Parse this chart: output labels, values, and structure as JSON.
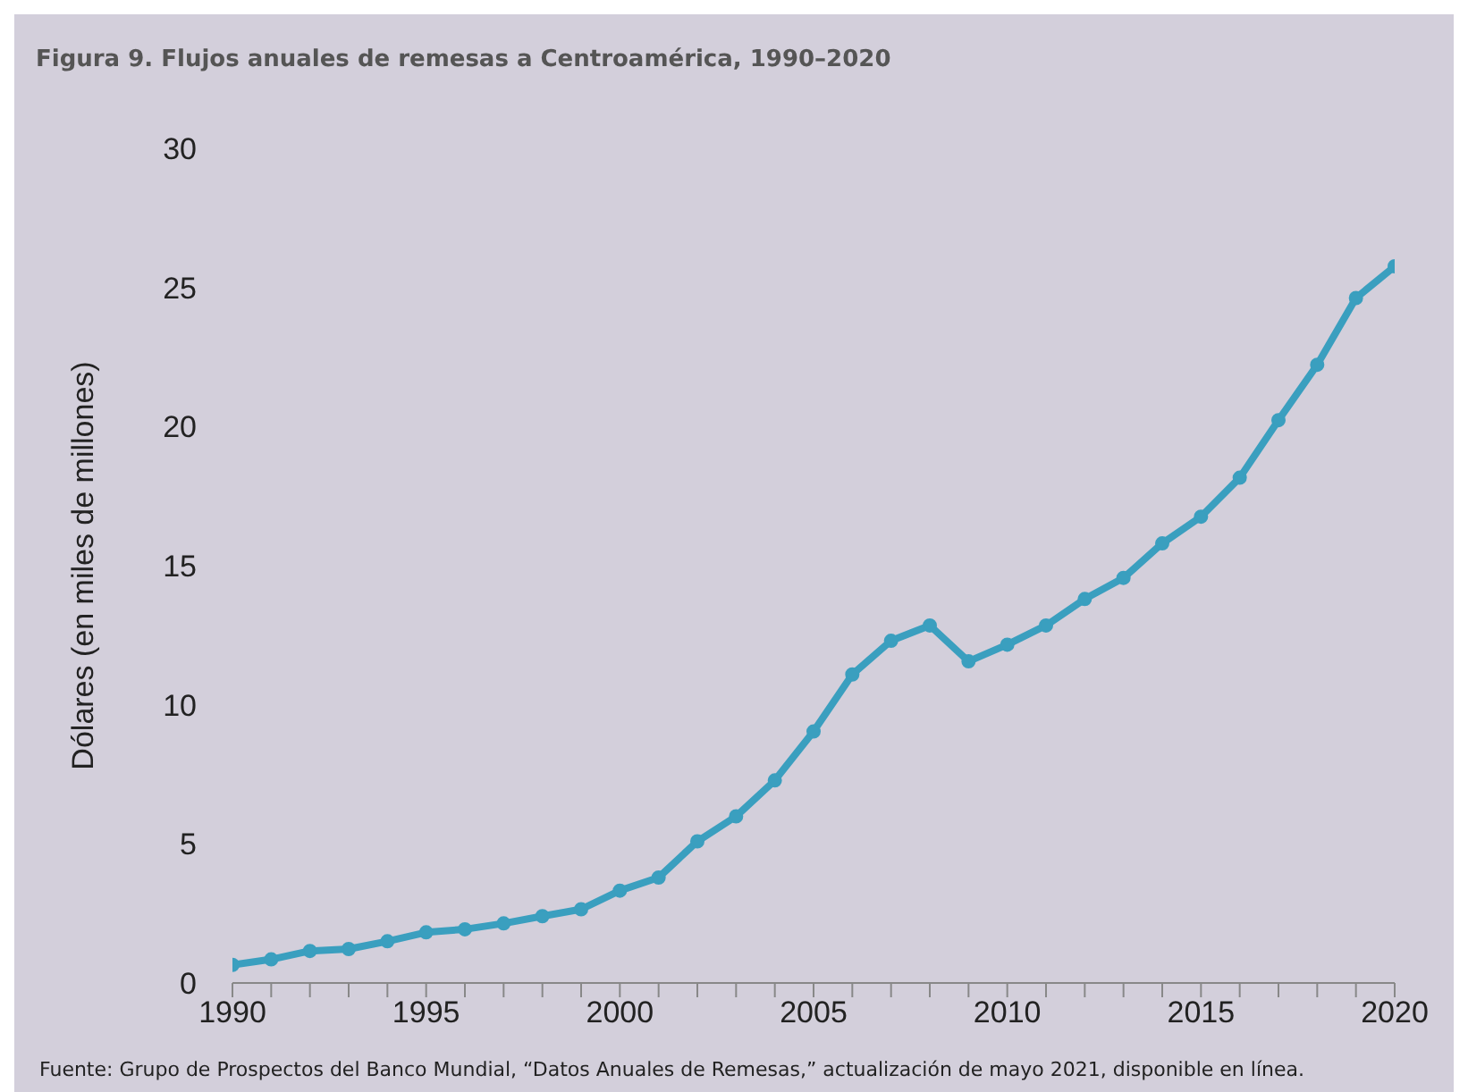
{
  "chart_data": {
    "type": "line",
    "title": "Figura 9. Flujos anuales de remesas a Centroamérica, 1990–2020",
    "ylabel": "Dólares (en miles de millones)",
    "x": [
      1990,
      1991,
      1992,
      1993,
      1994,
      1995,
      1996,
      1997,
      1998,
      1999,
      2000,
      2001,
      2002,
      2003,
      2004,
      2005,
      2006,
      2007,
      2008,
      2009,
      2010,
      2011,
      2012,
      2013,
      2014,
      2015,
      2016,
      2017,
      2018,
      2019,
      2020
    ],
    "series": [
      {
        "color": "#3a9fbf",
        "values": [
          0.65,
          0.85,
          1.15,
          1.22,
          1.5,
          1.82,
          1.93,
          2.14,
          2.4,
          2.65,
          3.32,
          3.79,
          5.09,
          5.99,
          7.28,
          9.04,
          11.09,
          12.3,
          12.85,
          11.56,
          12.16,
          12.85,
          13.8,
          14.56,
          15.8,
          16.76,
          18.16,
          20.23,
          22.22,
          24.62,
          25.76
        ]
      }
    ],
    "xlim": [
      1990,
      2020
    ],
    "xticks": [
      1990,
      {
        "value": 1991,
        "label": null
      },
      {
        "value": 1992,
        "label": null
      },
      {
        "value": 1993,
        "label": null
      },
      {
        "value": 1994,
        "label": null
      },
      1995,
      {
        "value": 1996,
        "label": null
      },
      {
        "value": 1997,
        "label": null
      },
      {
        "value": 1998,
        "label": null
      },
      {
        "value": 1999,
        "label": null
      },
      2000,
      {
        "value": 2001,
        "label": null
      },
      {
        "value": 2002,
        "label": null
      },
      {
        "value": 2003,
        "label": null
      },
      {
        "value": 2004,
        "label": null
      },
      2005,
      {
        "value": 2006,
        "label": null
      },
      {
        "value": 2007,
        "label": null
      },
      {
        "value": 2008,
        "label": null
      },
      {
        "value": 2009,
        "label": null
      },
      2010,
      {
        "value": 2011,
        "label": null
      },
      {
        "value": 2012,
        "label": null
      },
      {
        "value": 2013,
        "label": null
      },
      {
        "value": 2014,
        "label": null
      },
      2015,
      {
        "value": 2016,
        "label": null
      },
      {
        "value": 2017,
        "label": null
      },
      {
        "value": 2018,
        "label": null
      },
      {
        "value": 2019,
        "label": null
      },
      2020
    ],
    "ylim": [
      0,
      30
    ],
    "yticks": [
      0,
      5,
      10,
      15,
      20,
      25,
      30
    ],
    "grid": false,
    "legend": false,
    "marker": "circle",
    "line_style": "solid",
    "annotations": [
      "Fuente: Grupo de Prospectos del Banco Mundial, “Datos Anuales de Remesas,” actualización de mayo 2021, disponible en línea."
    ]
  }
}
